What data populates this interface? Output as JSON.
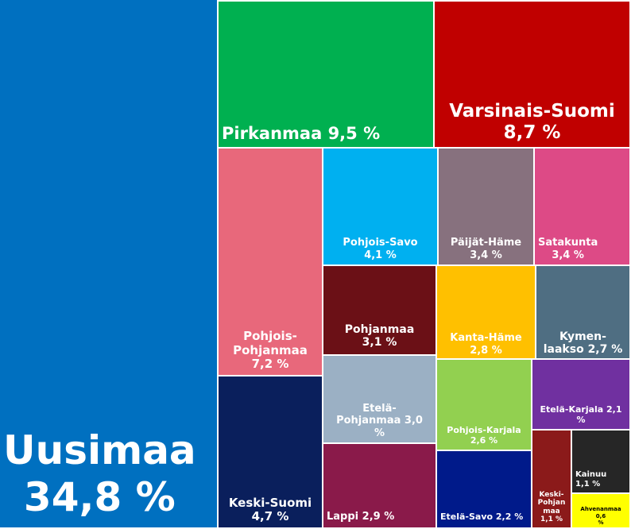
{
  "chart_data": {
    "type": "treemap",
    "title": "",
    "items": [
      {
        "name": "Uusimaa",
        "value": 34.8,
        "label": "Uusimaa\n34,8 %",
        "color": "#0070c0"
      },
      {
        "name": "Pirkanmaa",
        "value": 9.5,
        "label": "Pirkanmaa 9,5 %",
        "color": "#00b050"
      },
      {
        "name": "Varsinais-Suomi",
        "value": 8.7,
        "label": "Varsinais-Suomi\n8,7 %",
        "color": "#c00000"
      },
      {
        "name": "Pohjois-Pohjanmaa",
        "value": 7.2,
        "label": "Pohjois-\nPohjanmaa\n7,2 %",
        "color": "#e8687b"
      },
      {
        "name": "Keski-Suomi",
        "value": 4.7,
        "label": "Keski-Suomi\n4,7 %",
        "color": "#0a1f5c"
      },
      {
        "name": "Pohjois-Savo",
        "value": 4.1,
        "label": "Pohjois-Savo\n4,1 %",
        "color": "#00b0f0"
      },
      {
        "name": "Päijät-Häme",
        "value": 3.4,
        "label": "Päijät-Häme\n3,4 %",
        "color": "#87717e"
      },
      {
        "name": "Satakunta",
        "value": 3.4,
        "label": "Satakunta\n3,4 %",
        "color": "#dd4a86"
      },
      {
        "name": "Pohjanmaa",
        "value": 3.1,
        "label": "Pohjanmaa\n3,1 %",
        "color": "#6b1016"
      },
      {
        "name": "Kanta-Häme",
        "value": 2.8,
        "label": "Kanta-Häme\n2,8 %",
        "color": "#ffc000"
      },
      {
        "name": "Kymenlaakso",
        "value": 2.7,
        "label": "Kymen-\nlaakso 2,7 %",
        "color": "#4f6e82"
      },
      {
        "name": "Etelä-Pohjanmaa",
        "value": 3.0,
        "label": "Etelä-\nPohjanmaa 3,0\n%",
        "color": "#9bb0c4"
      },
      {
        "name": "Pohjois-Karjala",
        "value": 2.6,
        "label": "Pohjois-Karjala\n2,6 %",
        "color": "#92d050"
      },
      {
        "name": "Etelä-Karjala",
        "value": 2.1,
        "label": "Etelä-Karjala 2,1\n%",
        "color": "#7030a0"
      },
      {
        "name": "Lappi",
        "value": 2.9,
        "label": "Lappi 2,9 %",
        "color": "#8a1a4a"
      },
      {
        "name": "Etelä-Savo",
        "value": 2.2,
        "label": "Etelä-Savo 2,2 %",
        "color": "#001a8a"
      },
      {
        "name": "Keski-Pohjanmaa",
        "value": 1.1,
        "label": "Keski-\nPohjan\nmaa\n1,1 %",
        "color": "#8b1a1a"
      },
      {
        "name": "Kainuu",
        "value": 1.1,
        "label": "Kainuu\n1,1 %",
        "color": "#262626"
      },
      {
        "name": "Ahvenanmaa",
        "value": 0.6,
        "label": "Ahvenanmaa 0,6\n%",
        "color": "#ffff00"
      }
    ]
  }
}
